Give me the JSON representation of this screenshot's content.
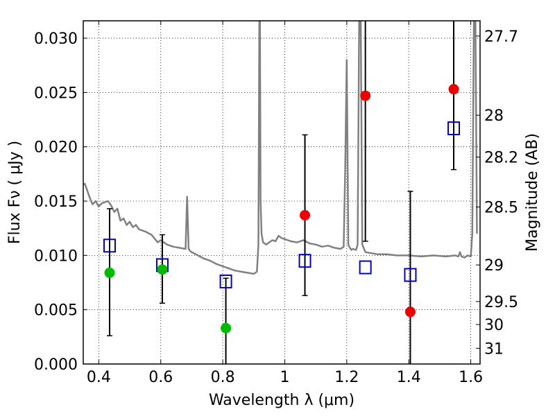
{
  "chart_data": {
    "type": "scatter",
    "xlabel": "Wavelength  λ (μm)",
    "ylabel": "Flux  Fν  ( μJy )",
    "ylabel_right": "Magnitude (AB)",
    "xlim": [
      0.35,
      1.63
    ],
    "ylim": [
      0.0,
      0.0316
    ],
    "grid": true,
    "x_ticks": [
      0.4,
      0.6,
      0.8,
      1.0,
      1.2,
      1.4,
      1.6
    ],
    "x_tick_labels": [
      "0.4",
      "0.6",
      "0.8",
      "1",
      "1.2",
      "1.4",
      "1.6"
    ],
    "y_ticks": [
      0.0,
      0.005,
      0.01,
      0.015,
      0.02,
      0.025,
      0.03
    ],
    "y_tick_labels": [
      "0.000",
      "0.005",
      "0.010",
      "0.015",
      "0.020",
      "0.025",
      "0.030"
    ],
    "magnitude_ticks": [
      27.7,
      28,
      28.2,
      28.5,
      29,
      29.5,
      30,
      31
    ],
    "magnitude_tick_labels": [
      "27.7",
      "28",
      "28.2",
      "28.5",
      "29",
      "29.5",
      "30",
      "31"
    ],
    "magnitude_zero_point": 23.9,
    "series": [
      {
        "kind": "errorbar",
        "color": "#000000",
        "points": [
          {
            "x": 0.435,
            "y": 0.0084,
            "low": 0.0026,
            "high": 0.0143
          },
          {
            "x": 0.605,
            "y": 0.0087,
            "low": 0.0056,
            "high": 0.0119
          },
          {
            "x": 0.81,
            "y": 0.0033,
            "low": 0.0,
            "high": 0.0079
          },
          {
            "x": 1.065,
            "y": 0.0137,
            "low": 0.0063,
            "high": 0.0211
          },
          {
            "x": 1.26,
            "y": 0.0247,
            "low": 0.0113,
            "high": 0.0316
          },
          {
            "x": 1.405,
            "y": 0.0048,
            "low": 0.0,
            "high": 0.0159
          },
          {
            "x": 1.545,
            "y": 0.0253,
            "low": 0.0179,
            "high": 0.0316
          }
        ]
      },
      {
        "kind": "green-dots",
        "color": "#00bb00",
        "x": [
          0.435,
          0.605,
          0.81
        ],
        "y": [
          0.0084,
          0.0087,
          0.0033
        ]
      },
      {
        "kind": "red-dots",
        "color": "#ee0000",
        "x": [
          1.065,
          1.26,
          1.405,
          1.545
        ],
        "y": [
          0.0137,
          0.0247,
          0.0048,
          0.0253
        ]
      },
      {
        "kind": "blue-squares",
        "color": "#0000cc",
        "x": [
          0.435,
          0.605,
          0.81,
          1.065,
          1.26,
          1.405,
          1.545
        ],
        "y": [
          0.0109,
          0.0091,
          0.0076,
          0.0095,
          0.0089,
          0.0082,
          0.0217
        ]
      },
      {
        "kind": "spectrum-line",
        "color": "#808080",
        "x": [
          0.35,
          0.355,
          0.36,
          0.37,
          0.38,
          0.39,
          0.4,
          0.41,
          0.42,
          0.43,
          0.44,
          0.45,
          0.46,
          0.47,
          0.48,
          0.49,
          0.5,
          0.51,
          0.52,
          0.53,
          0.55,
          0.57,
          0.59,
          0.6,
          0.62,
          0.64,
          0.66,
          0.68,
          0.685,
          0.69,
          0.695,
          0.7,
          0.72,
          0.74,
          0.76,
          0.78,
          0.8,
          0.82,
          0.84,
          0.86,
          0.88,
          0.9,
          0.91,
          0.915,
          0.918,
          0.92,
          0.922,
          0.925,
          0.93,
          0.94,
          0.95,
          0.96,
          0.97,
          0.98,
          0.99,
          1.0,
          1.02,
          1.04,
          1.06,
          1.08,
          1.1,
          1.12,
          1.14,
          1.16,
          1.18,
          1.19,
          1.195,
          1.2,
          1.205,
          1.21,
          1.215,
          1.22,
          1.23,
          1.235,
          1.24,
          1.245,
          1.25,
          1.26,
          1.28,
          1.3,
          1.33,
          1.36,
          1.4,
          1.44,
          1.48,
          1.52,
          1.55,
          1.56,
          1.565,
          1.57,
          1.58,
          1.59,
          1.6,
          1.605,
          1.61,
          1.615,
          1.62
        ],
        "y": [
          0.0165,
          0.0166,
          0.0162,
          0.0154,
          0.0147,
          0.015,
          0.0145,
          0.0148,
          0.0149,
          0.015,
          0.0146,
          0.014,
          0.0143,
          0.0132,
          0.0134,
          0.0128,
          0.0131,
          0.0126,
          0.0128,
          0.0124,
          0.0122,
          0.0119,
          0.0112,
          0.0114,
          0.011,
          0.0108,
          0.0107,
          0.0106,
          0.0154,
          0.0106,
          0.0104,
          0.0103,
          0.01,
          0.0097,
          0.0095,
          0.0092,
          0.009,
          0.0088,
          0.0086,
          0.0085,
          0.0084,
          0.0083,
          0.0085,
          0.011,
          0.0316,
          0.0316,
          0.015,
          0.012,
          0.0112,
          0.011,
          0.0112,
          0.0114,
          0.0113,
          0.0118,
          0.0116,
          0.0115,
          0.0113,
          0.0112,
          0.0114,
          0.0111,
          0.011,
          0.0108,
          0.0109,
          0.0107,
          0.0106,
          0.0108,
          0.018,
          0.028,
          0.011,
          0.0107,
          0.0105,
          0.0106,
          0.0105,
          0.011,
          0.0316,
          0.0316,
          0.011,
          0.0103,
          0.0102,
          0.0101,
          0.0101,
          0.01,
          0.01,
          0.0099,
          0.01,
          0.0099,
          0.01,
          0.0099,
          0.0103,
          0.0099,
          0.0098,
          0.01,
          0.0099,
          0.012,
          0.0316,
          0.0316,
          0.012
        ]
      }
    ]
  }
}
